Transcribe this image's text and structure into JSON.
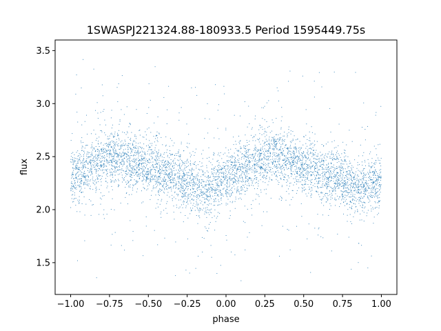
{
  "chart_data": {
    "type": "scatter",
    "title": "1SWASPJ221324.88-180933.5 Period 1595449.75s",
    "xlabel": "phase",
    "ylabel": "flux",
    "xlim": [
      -1.1,
      1.1
    ],
    "ylim": [
      1.2,
      3.6
    ],
    "x_ticks": [
      -1.0,
      -0.75,
      -0.5,
      -0.25,
      0.0,
      0.25,
      0.5,
      0.75,
      1.0
    ],
    "x_tick_labels": [
      "−1.00",
      "−0.75",
      "−0.50",
      "−0.25",
      "0.00",
      "0.25",
      "0.50",
      "0.75",
      "1.00"
    ],
    "y_ticks": [
      1.5,
      2.0,
      2.5,
      3.0,
      3.5
    ],
    "y_tick_labels": [
      "1.5",
      "2.0",
      "2.5",
      "3.0",
      "3.5"
    ],
    "grid": false,
    "legend": "none",
    "point_color": "#1f77b4",
    "series": [
      {
        "x": [
          -1.0,
          -0.95,
          -0.9,
          -0.85,
          -0.8,
          -0.75,
          -0.7,
          -0.65,
          -0.6,
          -0.55,
          -0.5,
          -0.45,
          -0.4,
          -0.35,
          -0.3,
          -0.25,
          -0.2,
          -0.15,
          -0.1,
          -0.05,
          0.0,
          0.05,
          0.1,
          0.15,
          0.2,
          0.25,
          0.3,
          0.35,
          0.4,
          0.45,
          0.5,
          0.55,
          0.6,
          0.65,
          0.7,
          0.75,
          0.8,
          0.85,
          0.9,
          0.95,
          1.0
        ],
        "y": [
          2.3,
          2.35,
          2.4,
          2.42,
          2.45,
          2.48,
          2.5,
          2.48,
          2.45,
          2.43,
          2.4,
          2.38,
          2.35,
          2.33,
          2.3,
          2.28,
          2.22,
          2.18,
          2.2,
          2.25,
          2.3,
          2.35,
          2.4,
          2.42,
          2.45,
          2.48,
          2.5,
          2.48,
          2.45,
          2.43,
          2.4,
          2.38,
          2.35,
          2.33,
          2.3,
          2.28,
          2.22,
          2.18,
          2.2,
          2.25,
          2.3
        ]
      }
    ]
  }
}
